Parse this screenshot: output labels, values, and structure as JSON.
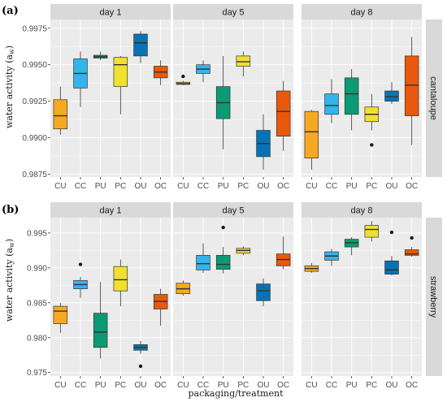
{
  "figure": {
    "xlabel": "packaging/treatment",
    "ylabel_main": "water activity (a",
    "ylabel_sub": "w",
    "ylabel_close": ")",
    "categories": [
      "CU",
      "CC",
      "PU",
      "PC",
      "OU",
      "OC"
    ],
    "colors": {
      "CU": "#F7A823",
      "CC": "#32B4EC",
      "PU": "#0C9A74",
      "PC": "#F0E130",
      "OU": "#0873B4",
      "OC": "#E8590C"
    },
    "panel_bg": "#EBEBEB",
    "strip_bg": "#D9D9D9",
    "grid_color": "#FFFFFF"
  },
  "chart_data": [
    {
      "type": "boxplot",
      "panel_tag": "(a)",
      "row_strip": "cantaloupe",
      "ylim": [
        0.9873,
        0.9981
      ],
      "yticks": [
        "0.9875",
        "0.9900",
        "0.9925",
        "0.9950",
        "0.9975"
      ],
      "ytick_values": [
        0.9875,
        0.99,
        0.9925,
        0.995,
        0.9975
      ],
      "facets": [
        {
          "label": "day 1",
          "boxes": [
            {
              "cat": "CU",
              "lw": 0.9902,
              "q1": 0.9906,
              "med": 0.9915,
              "q3": 0.9926,
              "uw": 0.9935,
              "out": []
            },
            {
              "cat": "CC",
              "lw": 0.9921,
              "q1": 0.9934,
              "med": 0.9944,
              "q3": 0.9954,
              "uw": 0.9959,
              "out": []
            },
            {
              "cat": "PU",
              "lw": 0.9953,
              "q1": 0.99545,
              "med": 0.99555,
              "q3": 0.99565,
              "uw": 0.9959,
              "out": []
            },
            {
              "cat": "PC",
              "lw": 0.9916,
              "q1": 0.9935,
              "med": 0.995,
              "q3": 0.9955,
              "uw": 0.9956,
              "out": []
            },
            {
              "cat": "OU",
              "lw": 0.9951,
              "q1": 0.9956,
              "med": 0.9965,
              "q3": 0.9971,
              "uw": 0.9973,
              "out": []
            },
            {
              "cat": "OC",
              "lw": 0.9936,
              "q1": 0.9941,
              "med": 0.9945,
              "q3": 0.9949,
              "uw": 0.9953,
              "out": []
            }
          ]
        },
        {
          "label": "day 5",
          "boxes": [
            {
              "cat": "CU",
              "lw": 0.9936,
              "q1": 0.99365,
              "med": 0.9937,
              "q3": 0.9938,
              "uw": 0.9939,
              "out": [
                0.9942
              ]
            },
            {
              "cat": "CC",
              "lw": 0.9938,
              "q1": 0.9944,
              "med": 0.9947,
              "q3": 0.995,
              "uw": 0.9953,
              "out": []
            },
            {
              "cat": "PU",
              "lw": 0.9892,
              "q1": 0.9913,
              "med": 0.9924,
              "q3": 0.9935,
              "uw": 0.9956,
              "out": []
            },
            {
              "cat": "PC",
              "lw": 0.9942,
              "q1": 0.9949,
              "med": 0.9952,
              "q3": 0.9956,
              "uw": 0.9959,
              "out": []
            },
            {
              "cat": "OU",
              "lw": 0.9878,
              "q1": 0.9887,
              "med": 0.9896,
              "q3": 0.9905,
              "uw": 0.9916,
              "out": []
            },
            {
              "cat": "OC",
              "lw": 0.9891,
              "q1": 0.9901,
              "med": 0.9918,
              "q3": 0.9932,
              "uw": 0.9939,
              "out": []
            }
          ]
        },
        {
          "label": "day 8",
          "boxes": [
            {
              "cat": "CU",
              "lw": 0.9878,
              "q1": 0.9886,
              "med": 0.9904,
              "q3": 0.9918,
              "uw": 0.9919,
              "out": []
            },
            {
              "cat": "CC",
              "lw": 0.991,
              "q1": 0.9916,
              "med": 0.9922,
              "q3": 0.993,
              "uw": 0.994,
              "out": []
            },
            {
              "cat": "PU",
              "lw": 0.9905,
              "q1": 0.9916,
              "med": 0.993,
              "q3": 0.9941,
              "uw": 0.9947,
              "out": []
            },
            {
              "cat": "PC",
              "lw": 0.9905,
              "q1": 0.9911,
              "med": 0.9916,
              "q3": 0.9921,
              "uw": 0.993,
              "out": [
                0.9895
              ]
            },
            {
              "cat": "OU",
              "lw": 0.9923,
              "q1": 0.9925,
              "med": 0.9928,
              "q3": 0.9932,
              "uw": 0.9938,
              "out": []
            },
            {
              "cat": "OC",
              "lw": 0.9895,
              "q1": 0.9915,
              "med": 0.9936,
              "q3": 0.9956,
              "uw": 0.9969,
              "out": []
            }
          ]
        }
      ]
    },
    {
      "type": "boxplot",
      "panel_tag": "(b)",
      "row_strip": "strawberry",
      "ylim": [
        0.9745,
        0.9972
      ],
      "yticks": [
        "0.975",
        "0.980",
        "0.985",
        "0.990",
        "0.995"
      ],
      "ytick_values": [
        0.975,
        0.98,
        0.985,
        0.99,
        0.995
      ],
      "facets": [
        {
          "label": "day 1",
          "boxes": [
            {
              "cat": "CU",
              "lw": 0.9807,
              "q1": 0.982,
              "med": 0.9838,
              "q3": 0.9845,
              "uw": 0.985,
              "out": []
            },
            {
              "cat": "CC",
              "lw": 0.9857,
              "q1": 0.987,
              "med": 0.9876,
              "q3": 0.9882,
              "uw": 0.9887,
              "out": [
                0.9905
              ]
            },
            {
              "cat": "PU",
              "lw": 0.977,
              "q1": 0.9786,
              "med": 0.9808,
              "q3": 0.9835,
              "uw": 0.988,
              "out": []
            },
            {
              "cat": "PC",
              "lw": 0.9845,
              "q1": 0.9867,
              "med": 0.9883,
              "q3": 0.9902,
              "uw": 0.9912,
              "out": []
            },
            {
              "cat": "OU",
              "lw": 0.9777,
              "q1": 0.9782,
              "med": 0.9786,
              "q3": 0.979,
              "uw": 0.9795,
              "out": [
                0.9759
              ]
            },
            {
              "cat": "OC",
              "lw": 0.9817,
              "q1": 0.9841,
              "med": 0.9852,
              "q3": 0.9862,
              "uw": 0.987,
              "out": []
            }
          ]
        },
        {
          "label": "day 5",
          "boxes": [
            {
              "cat": "CU",
              "lw": 0.986,
              "q1": 0.9863,
              "med": 0.987,
              "q3": 0.9878,
              "uw": 0.9882,
              "out": []
            },
            {
              "cat": "CC",
              "lw": 0.9893,
              "q1": 0.9897,
              "med": 0.9906,
              "q3": 0.9918,
              "uw": 0.9935,
              "out": []
            },
            {
              "cat": "PU",
              "lw": 0.9892,
              "q1": 0.9898,
              "med": 0.9905,
              "q3": 0.9918,
              "uw": 0.993,
              "out": [
                0.9958
              ]
            },
            {
              "cat": "PC",
              "lw": 0.9918,
              "q1": 0.9921,
              "med": 0.9925,
              "q3": 0.9928,
              "uw": 0.9931,
              "out": []
            },
            {
              "cat": "OU",
              "lw": 0.9845,
              "q1": 0.9853,
              "med": 0.9867,
              "q3": 0.9877,
              "uw": 0.9885,
              "out": []
            },
            {
              "cat": "OC",
              "lw": 0.9898,
              "q1": 0.9903,
              "med": 0.9912,
              "q3": 0.992,
              "uw": 0.9945,
              "out": []
            }
          ]
        },
        {
          "label": "day 8",
          "boxes": [
            {
              "cat": "CU",
              "lw": 0.9893,
              "q1": 0.9895,
              "med": 0.9899,
              "q3": 0.9903,
              "uw": 0.9907,
              "out": []
            },
            {
              "cat": "CC",
              "lw": 0.9903,
              "q1": 0.9911,
              "med": 0.9917,
              "q3": 0.9923,
              "uw": 0.9927,
              "out": []
            },
            {
              "cat": "PU",
              "lw": 0.9918,
              "q1": 0.993,
              "med": 0.9936,
              "q3": 0.9941,
              "uw": 0.9944,
              "out": []
            },
            {
              "cat": "PC",
              "lw": 0.9938,
              "q1": 0.9944,
              "med": 0.9955,
              "q3": 0.9961,
              "uw": 0.9967,
              "out": []
            },
            {
              "cat": "OU",
              "lw": 0.9889,
              "q1": 0.9891,
              "med": 0.9897,
              "q3": 0.991,
              "uw": 0.9917,
              "out": [
                0.9951
              ]
            },
            {
              "cat": "OC",
              "lw": 0.9916,
              "q1": 0.9918,
              "med": 0.992,
              "q3": 0.9926,
              "uw": 0.993,
              "out": [
                0.9943
              ]
            }
          ]
        }
      ]
    }
  ]
}
